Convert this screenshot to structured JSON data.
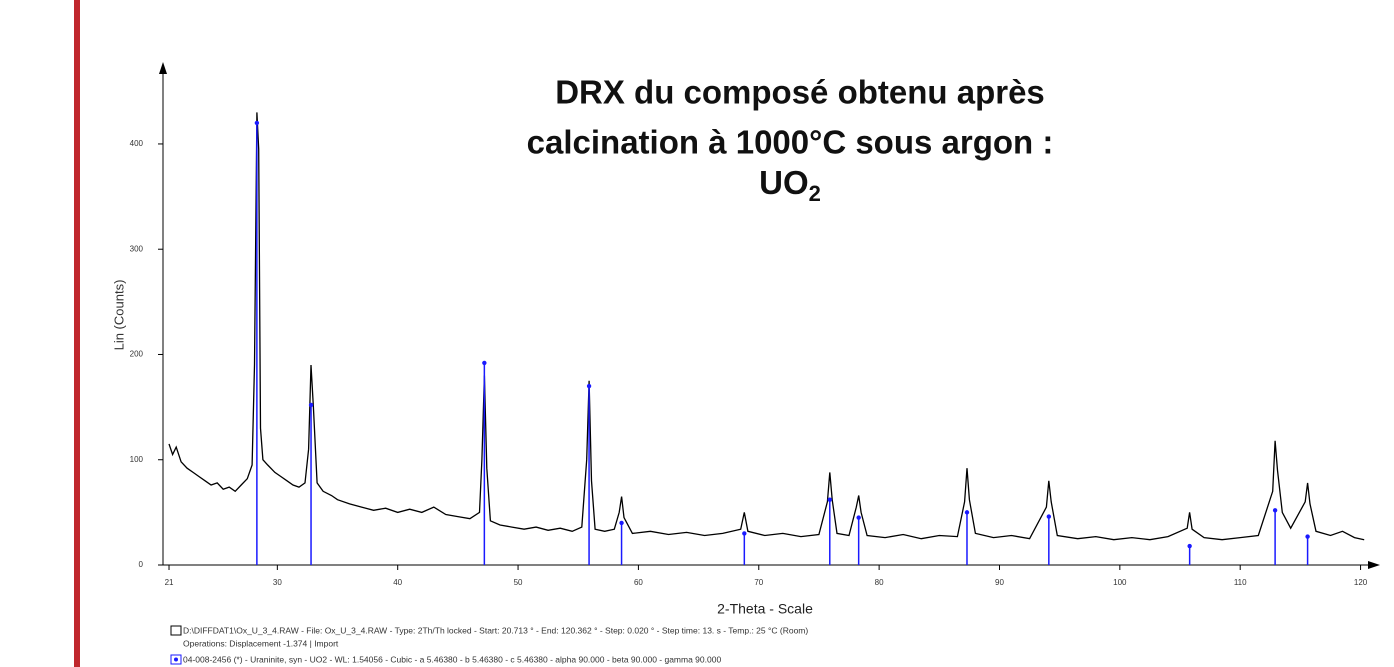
{
  "chart_data": {
    "type": "line",
    "title_lines": [
      "DRX du composé obtenu après",
      "calcination à 1000°C sous argon :"
    ],
    "formula": {
      "main": "UO",
      "sub": "2",
      "color": "#1a1aff"
    },
    "x_label": "2-Theta - Scale",
    "y_label": "Lin (Counts)",
    "captions": [
      "D:\\DIFFDAT1\\Ox_U_3_4.RAW - File: Ox_U_3_4.RAW - Type: 2Th/Th locked - Start: 20.713 ° - End: 120.362 ° - Step: 0.020 ° - Step time: 13. s - Temp.: 25 °C (Room)",
      "Operations: Displacement -1.374 | Import",
      "04-008-2456 (*) - Uraninite, syn - UO2 - WL: 1.54056 - Cubic - a 5.46380 - b 5.46380 - c 5.46380 - alpha 90.000 - beta 90.000 - gamma 90.000"
    ],
    "xlim": [
      20.5,
      121.2
    ],
    "ylim": [
      0,
      475
    ],
    "xticks": [
      21,
      30,
      40,
      50,
      60,
      70,
      80,
      90,
      100,
      110,
      120
    ],
    "yticks": [
      0,
      100,
      200,
      300,
      400
    ],
    "pattern": {
      "color": "#000000",
      "x": [
        21,
        21.3,
        21.6,
        22,
        22.5,
        23,
        23.5,
        24,
        24.5,
        25,
        25.5,
        26,
        26.5,
        27,
        27.5,
        27.9,
        28.1,
        28.3,
        28.45,
        28.6,
        28.8,
        29.2,
        29.8,
        30.3,
        30.8,
        31.3,
        31.8,
        32.3,
        32.6,
        32.8,
        33.0,
        33.3,
        33.8,
        34.5,
        35,
        36,
        37,
        38,
        39,
        40,
        41,
        42,
        43,
        44,
        45,
        46,
        46.8,
        47.0,
        47.2,
        47.4,
        47.7,
        48.5,
        49.5,
        50.5,
        51.5,
        52.5,
        53.5,
        54.5,
        55.3,
        55.7,
        55.9,
        56.1,
        56.4,
        57.2,
        58,
        58.4,
        58.6,
        58.8,
        59.5,
        61,
        62.5,
        64,
        65.5,
        67,
        68.5,
        68.8,
        69.1,
        70.5,
        72,
        73.5,
        75,
        75.7,
        75.9,
        76.1,
        76.5,
        77.5,
        78.1,
        78.3,
        78.5,
        79,
        80.5,
        82,
        83.5,
        85,
        86.5,
        87.1,
        87.3,
        87.5,
        88,
        89.5,
        91,
        92.5,
        93.9,
        94.1,
        94.3,
        94.8,
        96.5,
        98,
        99.5,
        101,
        102.5,
        104,
        105.6,
        105.8,
        106,
        107,
        108.5,
        110,
        111.5,
        112.7,
        112.9,
        113.1,
        113.5,
        114.2,
        115.4,
        115.6,
        115.8,
        116.3,
        117.5,
        118.5,
        119.5,
        120.3
      ],
      "values": [
        115,
        105,
        112,
        98,
        92,
        88,
        84,
        80,
        76,
        78,
        72,
        74,
        70,
        76,
        82,
        95,
        190,
        430,
        395,
        130,
        100,
        95,
        88,
        84,
        80,
        76,
        74,
        78,
        110,
        190,
        150,
        78,
        70,
        66,
        62,
        58,
        55,
        52,
        54,
        50,
        53,
        50,
        55,
        48,
        46,
        44,
        50,
        100,
        180,
        92,
        42,
        38,
        36,
        34,
        36,
        33,
        35,
        32,
        36,
        100,
        175,
        80,
        34,
        32,
        34,
        50,
        65,
        45,
        30,
        32,
        29,
        31,
        28,
        30,
        34,
        50,
        32,
        28,
        30,
        27,
        29,
        60,
        88,
        62,
        30,
        28,
        55,
        66,
        50,
        28,
        26,
        29,
        25,
        28,
        27,
        60,
        92,
        62,
        30,
        26,
        28,
        25,
        55,
        80,
        60,
        28,
        25,
        27,
        24,
        26,
        24,
        27,
        35,
        50,
        34,
        26,
        24,
        26,
        28,
        70,
        118,
        90,
        50,
        35,
        60,
        78,
        58,
        32,
        28,
        32,
        26,
        24
      ]
    },
    "reference": {
      "color": "#1a1aff",
      "x": [
        28.3,
        32.8,
        47.2,
        55.9,
        58.6,
        68.8,
        75.9,
        78.3,
        87.3,
        94.1,
        105.8,
        112.9,
        115.6
      ],
      "values": [
        420,
        152,
        192,
        170,
        40,
        30,
        62,
        45,
        50,
        46,
        18,
        52,
        27
      ]
    }
  }
}
